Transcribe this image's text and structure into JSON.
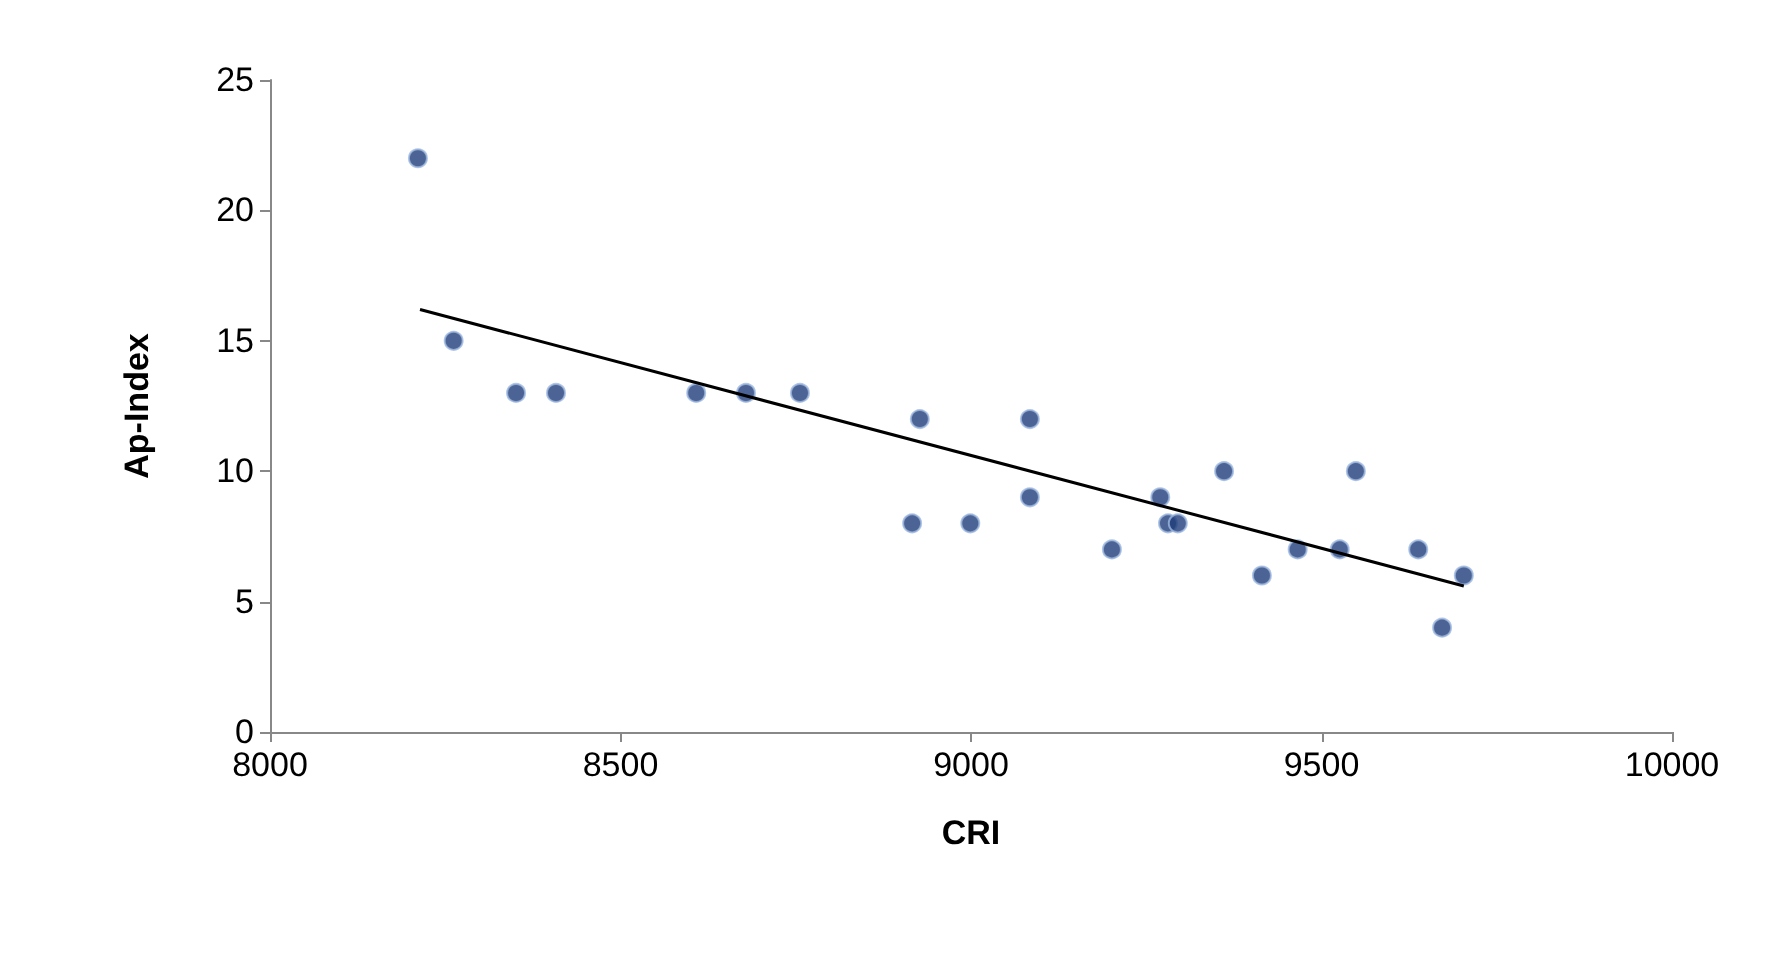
{
  "chart_data": {
    "type": "scatter",
    "xlabel": "CRI",
    "ylabel": "Ap-Index",
    "xlim": [
      8000,
      10000
    ],
    "xticks": [
      8000,
      8500,
      9000,
      9500,
      10000
    ],
    "ylim": [
      0,
      25
    ],
    "yticks": [
      0,
      5,
      10,
      15,
      20,
      25
    ],
    "grid": false,
    "marker": "circle",
    "series": [
      {
        "color": "#1f3d7a",
        "x": [
          8211,
          8262,
          8351,
          8408,
          8608,
          8679,
          8756,
          8916,
          8927,
          8999,
          9084,
          9084,
          9201,
          9270,
          9281,
          9295,
          9361,
          9415,
          9466,
          9526,
          9549,
          9638,
          9672,
          9703
        ],
        "values": [
          22,
          15,
          13,
          13,
          13,
          13,
          13,
          8,
          12,
          8,
          12,
          9,
          7,
          9,
          8,
          8,
          10,
          6,
          7,
          7,
          10,
          7,
          4,
          6
        ]
      },
      {
        "type": "line",
        "color": "#000000",
        "x": [
          8214,
          9703
        ],
        "values": [
          16.2,
          5.6
        ],
        "marker": "none",
        "line_style": "solid"
      }
    ]
  }
}
